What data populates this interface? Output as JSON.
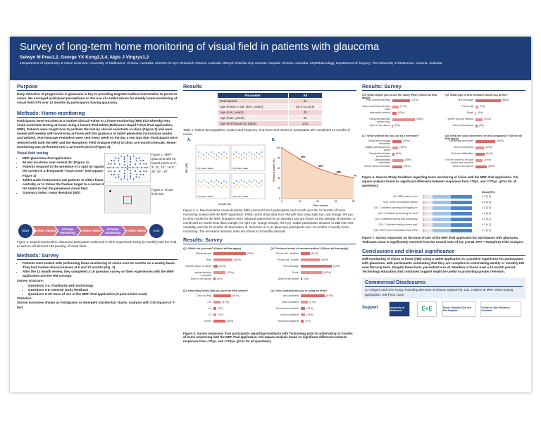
{
  "header": {
    "title": "Survey of long-term home monitoring of visual field in patients with glaucoma",
    "authors": "Selwyn M Prea1,2, George YX Kong2,3,4, Algis J Vingrys1,2",
    "affiliations": "1Department of Optometry & Vision Sciences, University of Melbourne, Victoria, Australia; 2Centre for Eye Research Victoria, Australia; 3Royal Victorian Eye and Ear Hospital, Victoria, Australia; 4Ophthalmology, Department of Surgery, The University of Melbourne, Victoria, Australia"
  },
  "purpose": {
    "heading": "Purpose",
    "text": "Early detection of progression in glaucoma is key to providing targeted medical intervention to preserve vision. We surveyed participant perceptions on the use of a tablet device for weekly home-monitoring of visual field (VF) over 12 months by participants having glaucoma."
  },
  "methods_home": {
    "heading": "Methods: Home-monitoring",
    "text": "Participants were recruited at a routine clinical review to a home-monitoring (HM) trial whereby they could undertake testing at-home using a loaned iPad tablet (Melbourne Rapid Fields iPad application, MRF). Patients were taught how to perform the test by clinical assistants in-clinic (Figure 3) and were tasked with weekly self-monitoring at-home with the guidance of tablet generated instructions (audio and written). Text message reminders were sent every week on the day a test was due. Participants were retested with both the MRF and the Humphrey Field Analyzer (HFA) in-clinic at 6-month intervals. Home-monitoring was performed over a 12-month period (Figure 3).",
    "vf_heading": "Visual field testing",
    "bullets": [
      "MRF-glaucoma iPad application",
      "66 test locations over central 30° (Figure 1)",
      "Patients respond to the presence of a spot by tapping the screen in a designated \"touch zone\" (red square: Figure 2)",
      "Tablet audio instructions ask patients to either fixate centrally, or to follow the fixation target to a corner of the tablet to test the peripheral visual field.",
      "Summary index: mean deviation (MD)"
    ],
    "fig1_caption": "Figure 1. MRF-glaucoma with 66 tested points at 1°, 3°, 6°, 12°, 16.5°, 20°,26°, 30°",
    "fig2_caption": "Figure 2. Visual field task.",
    "timeline": {
      "start": "Start",
      "end": "End",
      "steps": [
        "In-clinic training",
        "At-home monitoring",
        "In-clinic review",
        "At-home monitoring",
        "In-clinic review"
      ]
    },
    "fig3_caption": "Figure 3. Experiment timeline. Glaucoma participants undertook in-clinic supervised testing (6-monthly) with the iPad as well as self-directed HM (weekly) of visual fields."
  },
  "methods_survey": {
    "heading": "Methods: Survey",
    "bullets": [
      "Patients were tasked with performing home monitoring of vision over 12 months on a weekly basis. They had routine clinical reviews at 6 and 12 months (Fig. 3).",
      "After the 12 month review, they completed a 19 question survey on their experiences with the MRF application and the HM concept."
    ],
    "structure_heading": "Survey structure:",
    "structure": [
      "Questions 1-4: Familiarity with technology",
      "Questions 5-8: General study feedback",
      "Questions 9-15: Ease of use of the MRF iPad application (5-point Likert scale)"
    ],
    "stats_heading": "Statistics:",
    "stats": "Survey outcomes shown as histograms or divergent stacked bar charts. Analysis with Chi-Square or T-test."
  },
  "results": {
    "heading": "Results",
    "table": {
      "headers": [
        "Parameter",
        "All"
      ],
      "rows": [
        [
          "Participants",
          "41"
        ],
        [
          "Age (mean ± Std. Dev., years)",
          "62.3 (± 13.3)"
        ],
        [
          "Age (min, years)",
          "25"
        ],
        [
          "Age (max, years)",
          "81"
        ],
        [
          "Age test frequency (days)",
          "10.4"
        ]
      ]
    },
    "table_caption": "Table 1. Patient demographics, number and frequency of at-home test returns in participants who completed 12 months of review.",
    "fig4_caption": "Figure 4. A. Representative mean-deviation (MD) returned from 4 participants each month over the 12 months of home monitoring (x-axis) with the MRF application. Filled circles show data from HM with blue being right eye, and orange, left eye. In-clinic results for the MRF (triangles) were obtained supervised by an assistant and are shown as the average of baseline, 6-month and 12-month tests (blue triangle, for right eye, orange triangle, left eye). Stable participants showed <1.2dB inter-test variability over the 12 months of observation. B. Retention of n=41 glaucoma participants over 12 months of weekly home monitoring. The annotated retention rates are shown at 3-monthly intervals.",
    "chart_a_label": "A.",
    "chart_b_label": "B.",
    "chart_a_ylabel": "MD (dB)",
    "chart_a_xlabel": "month (N)",
    "chart_b_ylabel": "Percent active (%)",
    "chart_b_xlabel": "Test number",
    "pid_labels": [
      "P(1) Glau. stable",
      "P(2) Glau. stable",
      "P(3) Glau. stable",
      "P(4) Glau. stable"
    ]
  },
  "chart_data": [
    {
      "type": "line",
      "title": "",
      "xlabel": "Test number",
      "ylabel": "Percent active (%)",
      "x": [
        0,
        13,
        26,
        39,
        52
      ],
      "values": [
        100,
        78,
        60,
        48,
        41
      ],
      "annotations": [
        "78%",
        "60%",
        "48%",
        "41%"
      ],
      "xlim": [
        0,
        52
      ],
      "ylim": [
        0,
        100
      ]
    }
  ],
  "survey_left": {
    "heading": "Results: Survey",
    "q1": "Q1. Which do you own? (Select all that apply)",
    "q1_items": [
      "Mobile phone",
      "iPad",
      "Another brand of tablet",
      "Laptop/desktop computer",
      "None of the above"
    ],
    "q1_values": [
      "(76%)",
      "(45%)",
      "(10%)",
      "(29%)",
      "(5%)"
    ],
    "q2": "Q2. Preferred mode of communication? (Select all that apply)",
    "q2_items": [
      "Phone call - landline",
      "Phone call - mobile",
      "Text message",
      "Email",
      "None of the above"
    ],
    "q2_values": [
      "(21%)",
      "(45%)",
      "(73%)",
      "(52%)",
      "(3%)"
    ],
    "q3": "Q3. How many times had you used an iPad before?",
    "q3_items": [
      "Own an iPad",
      ">10",
      "4-9",
      "1-3",
      "Never"
    ],
    "q3_values": [
      "(41%)",
      "(17%)",
      "(7%)",
      "(7%)",
      "(28%)"
    ],
    "q4": "Q4. How confident are you in using an iPad?",
    "q4_items": [
      "Very confident",
      "Quite confident",
      "Somewhat confident",
      "Not so confident",
      "Not at all confident"
    ],
    "q4_values": [
      "(57%)",
      "(17%)",
      "(10%)",
      "(10%)",
      "(7%)"
    ],
    "fig5_caption": "Figure 5. Survey responses from participants regarding Familiarity with Technology prior to undertaking 12 months of home monitoring with the MRF iPad application. Chi-square analysis found no significant difference between responses from <70yo. and >=70yo. (p=ns for all questions)."
  },
  "survey_right": {
    "heading": "Results: Survey",
    "q5": "Q5. What helped you to use the study iPad? (Select all that apply)",
    "q5_items": [
      "Prior experience/iPad",
      "Given instructions before clinic",
      "Instruction manual",
      "Family/friend/other person help",
      "None of the above"
    ],
    "q5_values": [
      "(47%)",
      "(17%)",
      "(11%)",
      "(60%)",
      "(2%)"
    ],
    "q6": "Q6. What type of test reminder would you prefer?",
    "q6_items": [
      "Text message",
      "Phone call",
      "Email",
      "I prefer my own method",
      "None of the above"
    ],
    "q6_values": [
      "(66%)",
      "(7%)",
      "(0%)",
      "(19%)",
      "(5%)"
    ],
    "q7": "Q7. What worked did you use as a reminder?",
    "q7_items": [
      "Study text message reminders",
      "Digital calendar/phone alarm",
      "Family/friend/other person/team",
      "Calendar/diary reminders",
      "Never used a reminder"
    ],
    "q7_values": [
      "(24%)",
      "(15%)",
      "(5%)",
      "(29%)",
      "(26%)"
    ],
    "q8": "Q8. What are your incentives for test compliance? (Select all that apply)",
    "q8_items": [
      "Monitoring eye health",
      "Time commitment",
      "Technical difficulties",
      "For the benefit to my eye doctor and research",
      "None of the above"
    ],
    "q8_values": [
      "(52%)",
      "(22%)",
      "(24%)",
      "(19%)",
      "(29%)"
    ],
    "fig6_caption": "Figure 6. General Study Feedback regarding home monitoring of vision with the MRF iPad application. Chi-square analysis found no significant difference between responses from <70yo. and >=70yo. (p=ns for all questions).",
    "likert_header": "Mean(95%)",
    "likert": [
      {
        "q": "Q9. MRF easy to use?",
        "mean": "4.2 [3.9]"
      },
      {
        "q": "Q10. Voice commands helpful?",
        "mean": "3.8 [3.4]"
      },
      {
        "q": "Q11. Confident opening and logging in?",
        "mean": "4.3 [3.9]"
      },
      {
        "q": "Q12. Confident performing the test?",
        "mean": "4.4 [4.0]"
      },
      {
        "q": "Q13. Confident saving and submitting?",
        "mean": "4.5 [4.1]"
      },
      {
        "q": "Q14. Confident testing correct eye?",
        "mean": "4.4 [4.1]"
      },
      {
        "q": "Q15. MRF more comfortable than HFA?",
        "mean": "4.7 [4.1]"
      }
    ],
    "fig7_caption": "Figure 7. Survey responses on the Ease of Use of the MRF iPad application by participants with glaucoma. *Indicates mean is significantly removed from the neutral state of 2.5, p<0.01. HFA = Humphrey Field Analyzer."
  },
  "conclusions": {
    "heading": "Conclusions and clinical significance",
    "text": "Self-monitoring of vision at home (HM) using a tablet application is a positive experience for participants with glaucoma, with participants nominating that they are receptive to undertaking weekly or monthly HM over the long term. Despite these facts, persistent loss of retention is found over a 12-month period. Technology education and continued support might be useful in promoting greater retention."
  },
  "disclosures": {
    "heading": "Commercial Disclosures",
    "text": "AJ Vingrys and GYX Kong: Founding directors of Glance Optical Pty. Ltd., makers of MRF vision testing application. SM Prea: none."
  },
  "support": {
    "label": "Support",
    "logos": [
      "University of Melbourne",
      "E+E",
      "Royal Victorian Eye and Ear Hospital",
      "Centre for Eye Research Australia"
    ]
  },
  "colors": {
    "navy": "#1f3f7a",
    "red": "#e07070",
    "blue": "#4a86c8",
    "orange": "#e8a040"
  }
}
